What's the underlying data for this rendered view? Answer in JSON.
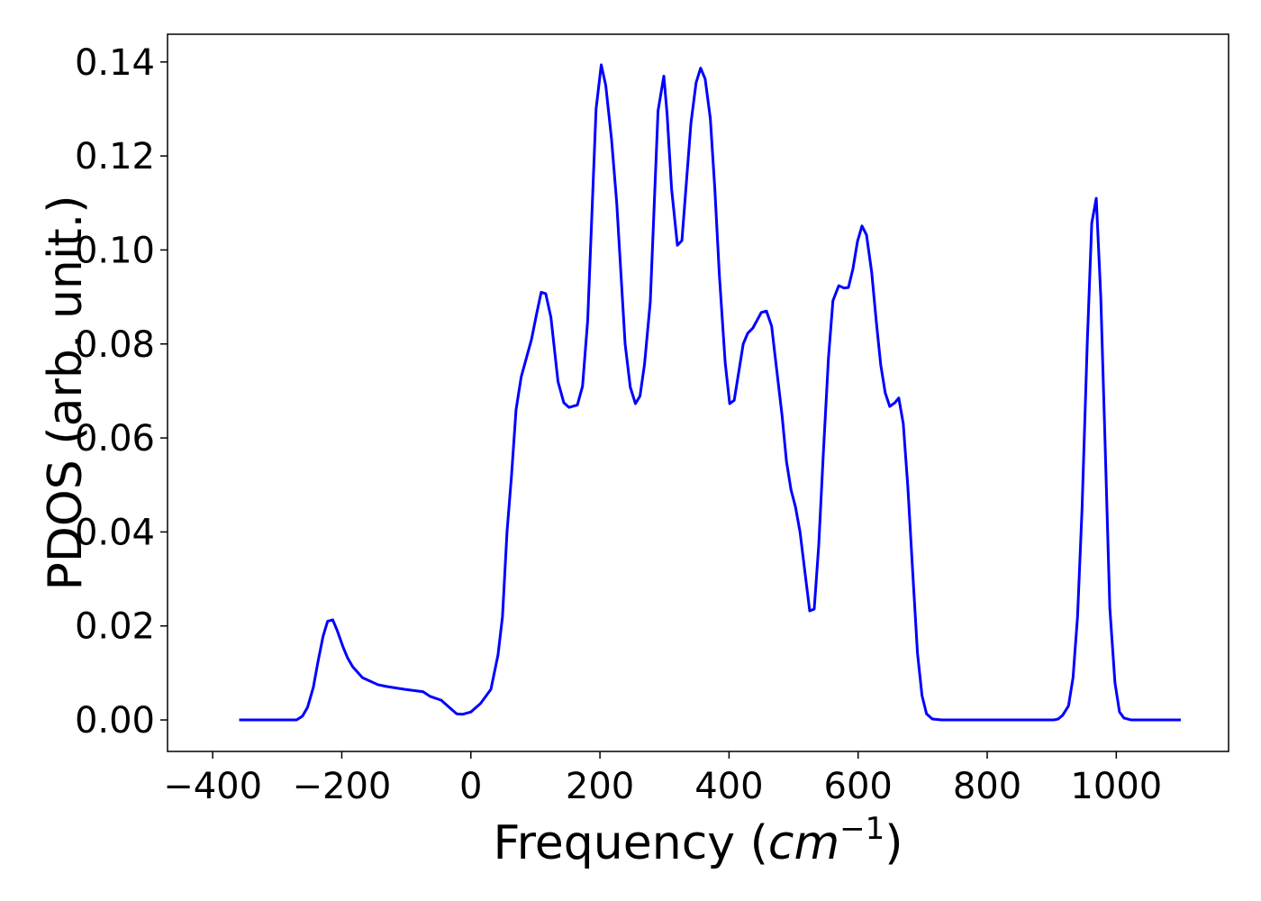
{
  "chart_data": {
    "type": "line",
    "xlabel": [
      "Frequency (",
      "cm",
      "−1",
      ")"
    ],
    "ylabel": "PDOS (arb. unit.)",
    "xlim": [
      -470,
      1174
    ],
    "ylim": [
      -0.0067,
      0.1459
    ],
    "xticks": [
      {
        "value": -400,
        "label": "−400"
      },
      {
        "value": -200,
        "label": "−200"
      },
      0,
      200,
      400,
      600,
      800,
      1000
    ],
    "yticks": [
      {
        "value": 0,
        "label": "0.00"
      },
      {
        "value": 0.02,
        "label": "0.02"
      },
      {
        "value": 0.04,
        "label": "0.04"
      },
      {
        "value": 0.06,
        "label": "0.06"
      },
      {
        "value": 0.08,
        "label": "0.08"
      },
      {
        "value": 0.1,
        "label": "0.10"
      },
      {
        "value": 0.12,
        "label": "0.12"
      },
      {
        "value": 0.14,
        "label": "0.14"
      }
    ],
    "series": [
      {
        "color": "#0000ff",
        "x": [
          -359,
          -300,
          -270,
          -261,
          -253,
          -244,
          -237,
          -229,
          -222,
          -214,
          -207,
          -198,
          -191,
          -183,
          -168,
          -144,
          -130,
          -102,
          -74,
          -63,
          -46,
          -32,
          -22,
          -13,
          0,
          15,
          31,
          42,
          49,
          56,
          63,
          70,
          78,
          94,
          102,
          109,
          116,
          124,
          135,
          144,
          152,
          165,
          173,
          181,
          194,
          202,
          209,
          218,
          226,
          239,
          247,
          255,
          262,
          269,
          278,
          290,
          299,
          304,
          311,
          320,
          327,
          341,
          349,
          356,
          363,
          371,
          378,
          385,
          394,
          401,
          408,
          422,
          429,
          437,
          450,
          458,
          466,
          473,
          482,
          489,
          496,
          503,
          510,
          518,
          525,
          532,
          539,
          546,
          554,
          561,
          570,
          578,
          585,
          592,
          599,
          606,
          613,
          621,
          628,
          635,
          642,
          649,
          657,
          663,
          670,
          677,
          685,
          692,
          699,
          706,
          715,
          729,
          903,
          910,
          917,
          926,
          933,
          940,
          947,
          955,
          962,
          969,
          976,
          983,
          990,
          998,
          1005,
          1012,
          1023,
          1100
        ],
        "values": [
          0,
          0,
          0,
          0.0008,
          0.0027,
          0.007,
          0.0123,
          0.0178,
          0.021,
          0.0213,
          0.019,
          0.0155,
          0.0132,
          0.0113,
          0.009,
          0.0075,
          0.0071,
          0.0065,
          0.006,
          0.005,
          0.0042,
          0.0025,
          0.0013,
          0.0012,
          0.0017,
          0.0035,
          0.0065,
          0.0138,
          0.022,
          0.04,
          0.052,
          0.066,
          0.073,
          0.081,
          0.0865,
          0.091,
          0.0907,
          0.0857,
          0.072,
          0.0675,
          0.0665,
          0.067,
          0.071,
          0.085,
          0.13,
          0.1394,
          0.135,
          0.1235,
          0.11,
          0.08,
          0.0708,
          0.0673,
          0.0689,
          0.0756,
          0.089,
          0.1296,
          0.137,
          0.129,
          0.113,
          0.101,
          0.102,
          0.127,
          0.1356,
          0.1387,
          0.1364,
          0.128,
          0.113,
          0.0947,
          0.0761,
          0.0673,
          0.068,
          0.08,
          0.0823,
          0.0834,
          0.0867,
          0.087,
          0.0838,
          0.0755,
          0.065,
          0.055,
          0.049,
          0.0453,
          0.04,
          0.031,
          0.0232,
          0.0236,
          0.0372,
          0.0564,
          0.0769,
          0.0892,
          0.0924,
          0.0919,
          0.092,
          0.096,
          0.1018,
          0.1051,
          0.1032,
          0.0953,
          0.085,
          0.0756,
          0.0696,
          0.0667,
          0.0675,
          0.0685,
          0.063,
          0.0497,
          0.0305,
          0.0142,
          0.0052,
          0.0013,
          0.0002,
          0,
          0,
          0.0002,
          0.001,
          0.003,
          0.009,
          0.022,
          0.045,
          0.08,
          0.1057,
          0.111,
          0.09,
          0.0573,
          0.0238,
          0.0079,
          0.0017,
          0.0004,
          0,
          0
        ]
      }
    ]
  }
}
